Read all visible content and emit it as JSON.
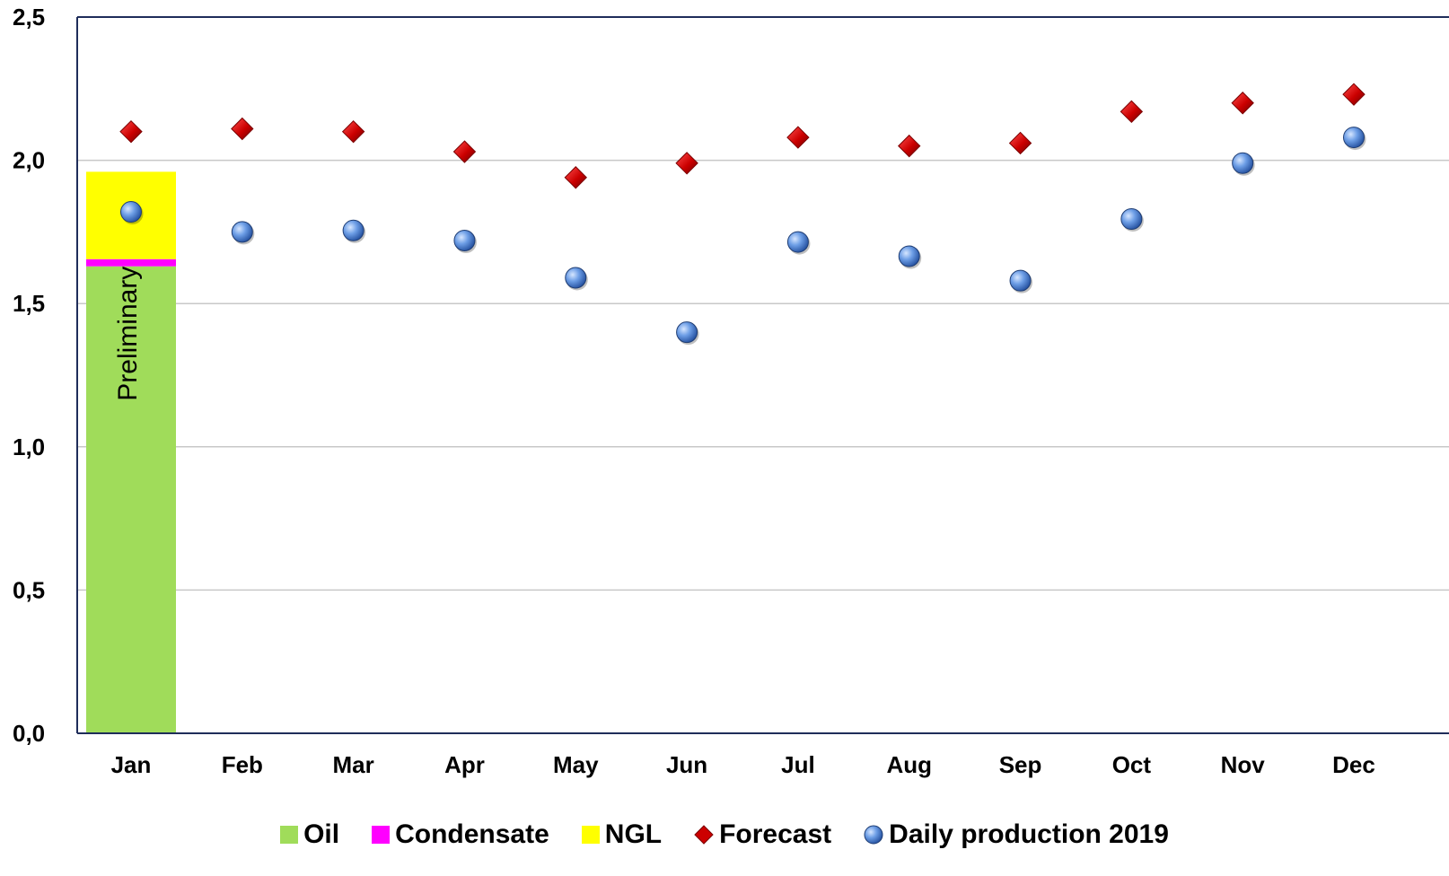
{
  "chart_data": {
    "type": "bar",
    "categories": [
      "Jan",
      "Feb",
      "Mar",
      "Apr",
      "May",
      "Jun",
      "Jul",
      "Aug",
      "Sep",
      "Oct",
      "Nov",
      "Dec"
    ],
    "y_ticks": [
      "0,0",
      "0,5",
      "1,0",
      "1,5",
      "2,0",
      "2,5"
    ],
    "ylim": [
      0,
      2.5
    ],
    "grid": true,
    "legend_position": "bottom",
    "bar_annotation": "Preliminary",
    "stacked_series": [
      {
        "name": "Oil",
        "color": "#a0dc5a",
        "values": [
          1.63,
          null,
          null,
          null,
          null,
          null,
          null,
          null,
          null,
          null,
          null,
          null
        ]
      },
      {
        "name": "Condensate",
        "color": "#ff00ff",
        "values": [
          0.025,
          null,
          null,
          null,
          null,
          null,
          null,
          null,
          null,
          null,
          null,
          null
        ]
      },
      {
        "name": "NGL",
        "color": "#ffff00",
        "values": [
          0.305,
          null,
          null,
          null,
          null,
          null,
          null,
          null,
          null,
          null,
          null,
          null
        ]
      }
    ],
    "point_series": [
      {
        "name": "Forecast",
        "marker": "diamond",
        "color": "#cc0000",
        "values": [
          2.1,
          2.11,
          2.1,
          2.03,
          1.94,
          1.99,
          2.08,
          2.05,
          2.06,
          2.17,
          2.2,
          2.23
        ]
      },
      {
        "name": "Daily production 2019",
        "marker": "circle",
        "color": "#5b8fd6",
        "values": [
          1.82,
          1.75,
          1.755,
          1.72,
          1.59,
          1.4,
          1.715,
          1.665,
          1.58,
          1.795,
          1.99,
          2.08
        ]
      }
    ]
  },
  "legend": [
    {
      "label": "Oil",
      "icon": "square-icon",
      "color": "#a0dc5a"
    },
    {
      "label": "Condensate",
      "icon": "square-icon",
      "color": "#ff00ff"
    },
    {
      "label": "NGL",
      "icon": "square-icon",
      "color": "#ffff00"
    },
    {
      "label": "Forecast",
      "icon": "diamond-icon",
      "color": "#cc0000"
    },
    {
      "label": "Daily production 2019",
      "icon": "circle-icon",
      "color": "#5b8fd6"
    }
  ]
}
